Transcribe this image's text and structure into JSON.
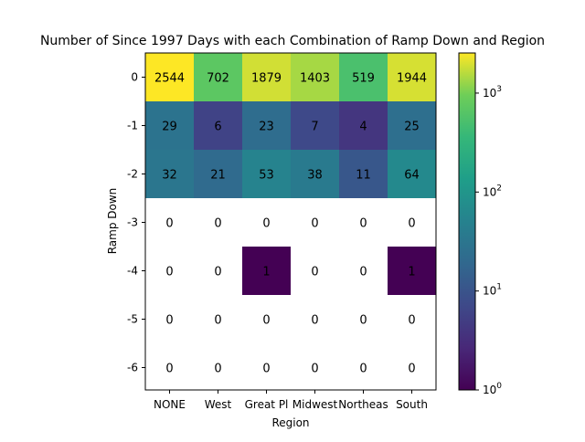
{
  "chart_data": {
    "type": "heatmap",
    "title": "Number of Since 1997 Days with each Combination of Ramp Down and Region",
    "xlabel": "Region",
    "ylabel": "Ramp Down",
    "x_categories": [
      "NONE",
      "West",
      "Great Pl",
      "Midwest",
      "Northeas",
      "South"
    ],
    "y_categories": [
      "0",
      "-1",
      "-2",
      "-3",
      "-4",
      "-5",
      "-6"
    ],
    "values": [
      [
        2544,
        702,
        1879,
        1403,
        519,
        1944
      ],
      [
        29,
        6,
        23,
        7,
        4,
        25
      ],
      [
        32,
        21,
        53,
        38,
        11,
        64
      ],
      [
        0,
        0,
        0,
        0,
        0,
        0
      ],
      [
        0,
        0,
        1,
        0,
        0,
        1
      ],
      [
        0,
        0,
        0,
        0,
        0,
        0
      ],
      [
        0,
        0,
        0,
        0,
        0,
        0
      ]
    ],
    "color_scale": "log",
    "colormap": "viridis",
    "zero_color": "#ffffff",
    "colorbar_range": [
      1,
      2544
    ],
    "colorbar_ticks": [
      {
        "base": "10",
        "exp": "0",
        "value": 1
      },
      {
        "base": "10",
        "exp": "1",
        "value": 10
      },
      {
        "base": "10",
        "exp": "2",
        "value": 100
      },
      {
        "base": "10",
        "exp": "3",
        "value": 1000
      }
    ]
  }
}
